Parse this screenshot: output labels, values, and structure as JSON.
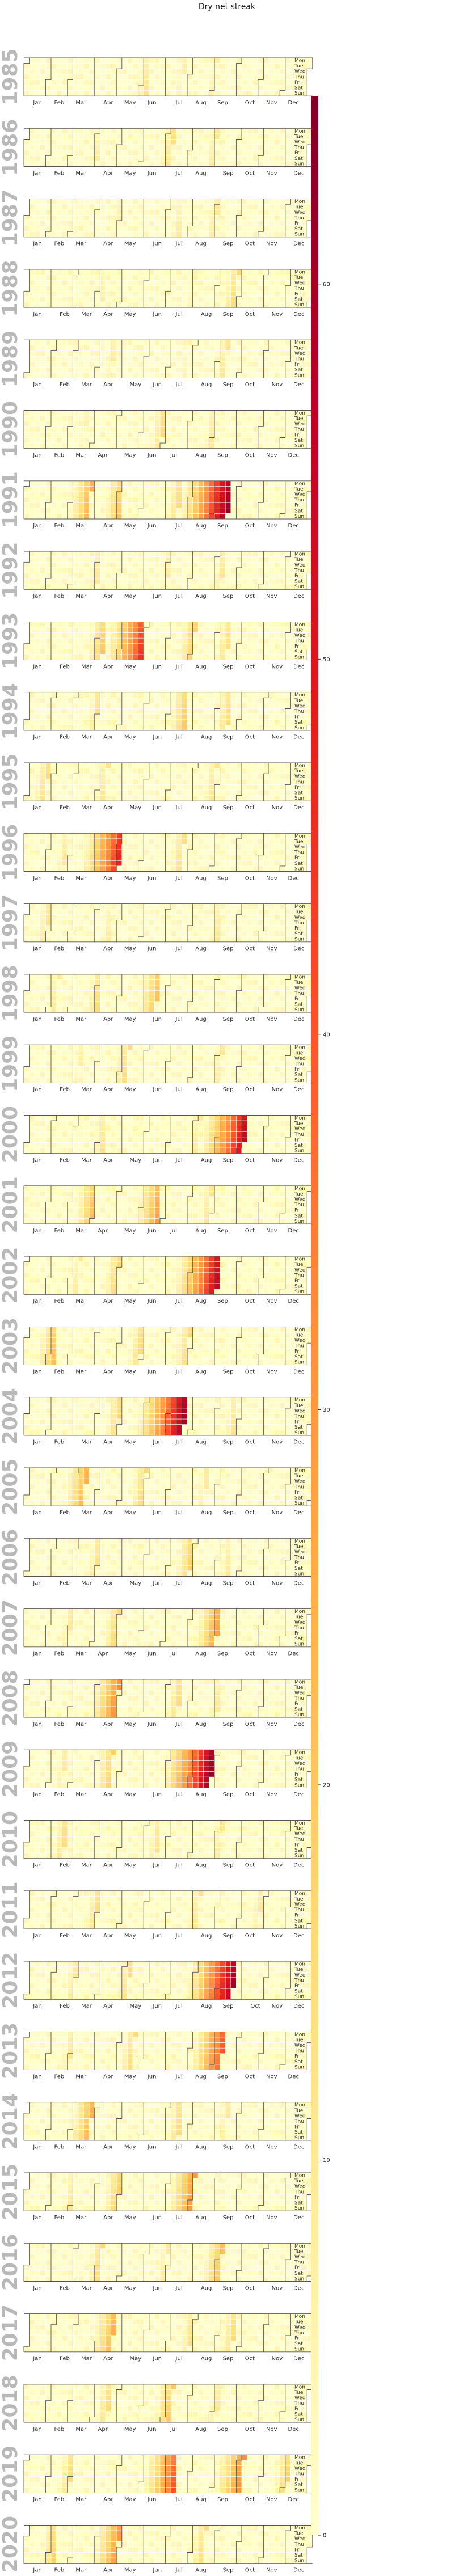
{
  "chart_data": {
    "type": "heatmap",
    "title": "Dry net streak",
    "years": [
      1985,
      1986,
      1987,
      1988,
      1989,
      1990,
      1991,
      1992,
      1993,
      1994,
      1995,
      1996,
      1997,
      1998,
      1999,
      2000,
      2001,
      2002,
      2003,
      2004,
      2005,
      2006,
      2007,
      2008,
      2009,
      2010,
      2011,
      2012,
      2013,
      2014,
      2015,
      2016,
      2017,
      2018,
      2019,
      2020
    ],
    "month_labels": [
      "Jan",
      "Feb",
      "Mar",
      "Apr",
      "May",
      "Jun",
      "Jul",
      "Aug",
      "Sep",
      "Oct",
      "Nov",
      "Dec"
    ],
    "weekday_labels": [
      "Mon",
      "Tue",
      "Wed",
      "Thu",
      "Fri",
      "Sat",
      "Sun"
    ],
    "colorbar": {
      "min": 0,
      "max": 65,
      "ticks": [
        0,
        10,
        20,
        30,
        40,
        50,
        60
      ],
      "colormap": "YlOrRd"
    },
    "streak_peaks": {
      "1985": [
        [
          160,
          12
        ],
        [
          205,
          8
        ],
        [
          245,
          7
        ]
      ],
      "1986": [
        [
          95,
          8
        ],
        [
          190,
          14
        ],
        [
          245,
          10
        ]
      ],
      "1987": [
        [
          200,
          9
        ],
        [
          245,
          10
        ],
        [
          120,
          6
        ]
      ],
      "1988": [
        [
          270,
          15
        ],
        [
          100,
          7
        ],
        [
          215,
          6
        ]
      ],
      "1989": [
        [
          110,
          8
        ],
        [
          255,
          12
        ],
        [
          205,
          6
        ]
      ],
      "1990": [
        [
          180,
          15
        ],
        [
          245,
          11
        ],
        [
          80,
          6
        ]
      ],
      "1991": [
        [
          85,
          25
        ],
        [
          125,
          20
        ],
        [
          200,
          15
        ],
        [
          264,
          62
        ]
      ],
      "1992": [
        [
          95,
          10
        ],
        [
          185,
          8
        ],
        [
          255,
          10
        ]
      ],
      "1993": [
        [
          100,
          20
        ],
        [
          150,
          45
        ],
        [
          215,
          18
        ],
        [
          260,
          14
        ]
      ],
      "1994": [
        [
          90,
          12
        ],
        [
          205,
          20
        ],
        [
          260,
          15
        ]
      ],
      "1995": [
        [
          25,
          15
        ],
        [
          100,
          12
        ],
        [
          240,
          12
        ]
      ],
      "1996": [
        [
          125,
          48
        ],
        [
          205,
          14
        ],
        [
          55,
          10
        ]
      ],
      "1997": [
        [
          30,
          12
        ],
        [
          110,
          8
        ],
        [
          250,
          10
        ]
      ],
      "1998": [
        [
          95,
          15
        ],
        [
          170,
          22
        ],
        [
          40,
          10
        ]
      ],
      "1999": [
        [
          130,
          15
        ],
        [
          70,
          8
        ],
        [
          250,
          10
        ]
      ],
      "2000": [
        [
          280,
          55
        ],
        [
          100,
          12
        ],
        [
          220,
          10
        ]
      ],
      "2001": [
        [
          90,
          22
        ],
        [
          175,
          28
        ],
        [
          240,
          12
        ]
      ],
      "2002": [
        [
          250,
          55
        ],
        [
          120,
          15
        ],
        [
          70,
          10
        ]
      ],
      "2003": [
        [
          40,
          22
        ],
        [
          150,
          15
        ],
        [
          210,
          15
        ]
      ],
      "2004": [
        [
          205,
          60
        ],
        [
          120,
          15
        ],
        [
          270,
          12
        ]
      ],
      "2005": [
        [
          75,
          25
        ],
        [
          150,
          15
        ],
        [
          230,
          10
        ]
      ],
      "2006": [
        [
          90,
          12
        ],
        [
          210,
          18
        ],
        [
          260,
          10
        ]
      ],
      "2007": [
        [
          250,
          28
        ],
        [
          120,
          15
        ],
        [
          60,
          10
        ]
      ],
      "2008": [
        [
          120,
          32
        ],
        [
          200,
          15
        ],
        [
          250,
          10
        ]
      ],
      "2009": [
        [
          240,
          62
        ],
        [
          110,
          18
        ],
        [
          50,
          10
        ]
      ],
      "2010": [
        [
          50,
          15
        ],
        [
          170,
          12
        ],
        [
          250,
          10
        ]
      ],
      "2011": [
        [
          90,
          14
        ],
        [
          220,
          12
        ],
        [
          300,
          10
        ]
      ],
      "2012": [
        [
          265,
          60
        ],
        [
          130,
          14
        ],
        [
          60,
          10
        ]
      ],
      "2013": [
        [
          255,
          40
        ],
        [
          140,
          15
        ],
        [
          60,
          10
        ]
      ],
      "2014": [
        [
          85,
          25
        ],
        [
          200,
          15
        ],
        [
          260,
          10
        ]
      ],
      "2015": [
        [
          215,
          30
        ],
        [
          120,
          18
        ],
        [
          60,
          10
        ]
      ],
      "2016": [
        [
          95,
          15
        ],
        [
          250,
          22
        ],
        [
          180,
          10
        ]
      ],
      "2017": [
        [
          110,
          25
        ],
        [
          210,
          12
        ],
        [
          265,
          15
        ]
      ],
      "2018": [
        [
          110,
          15
        ],
        [
          190,
          20
        ],
        [
          250,
          10
        ]
      ],
      "2019": [
        [
          195,
          40
        ],
        [
          280,
          32
        ],
        [
          60,
          15
        ],
        [
          340,
          18
        ]
      ],
      "2020": [
        [
          40,
          18
        ],
        [
          120,
          30
        ],
        [
          230,
          15
        ]
      ]
    }
  }
}
